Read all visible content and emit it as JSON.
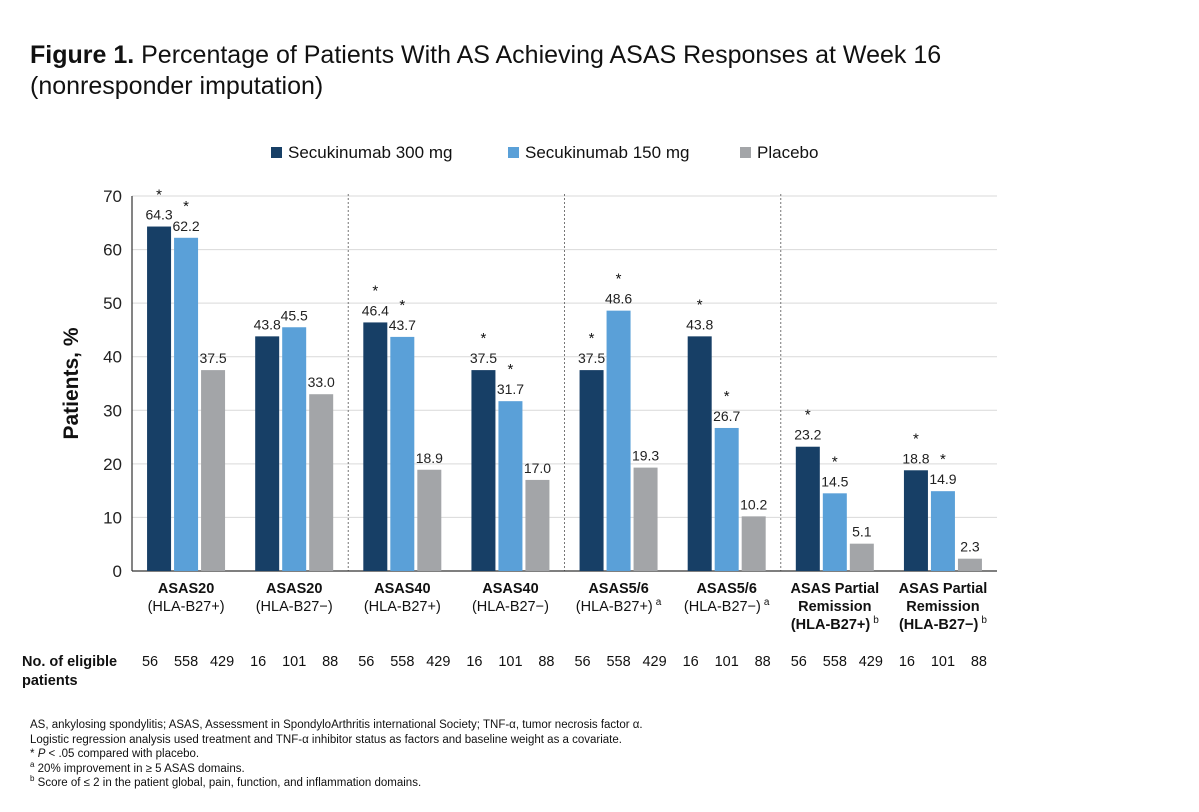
{
  "figure": {
    "label": "Figure 1.",
    "title_line1": " Percentage of Patients With AS Achieving ASAS Responses at Week 16",
    "title_line2": "(nonresponder imputation)"
  },
  "chart_data": {
    "type": "bar",
    "ylabel": "Patients, %",
    "ylim": [
      0,
      70
    ],
    "yticks": [
      0,
      10,
      20,
      30,
      40,
      50,
      60,
      70
    ],
    "grid": true,
    "legend_position": "top",
    "colors": {
      "Secukinumab 300 mg": "#173f66",
      "Secukinumab 150 mg": "#5aa0d8",
      "Placebo": "#a3a5a8"
    },
    "categories": [
      {
        "lines": [
          "ASAS20",
          "(HLA-B27+)"
        ],
        "sup": ""
      },
      {
        "lines": [
          "ASAS20",
          "(HLA-B27−)"
        ],
        "sup": ""
      },
      {
        "lines": [
          "ASAS40",
          "(HLA-B27+)"
        ],
        "sup": ""
      },
      {
        "lines": [
          "ASAS40",
          "(HLA-B27−)"
        ],
        "sup": ""
      },
      {
        "lines": [
          "ASAS5/6",
          "(HLA-B27+)"
        ],
        "sup": "a"
      },
      {
        "lines": [
          "ASAS5/6",
          "(HLA-B27−)"
        ],
        "sup": "a"
      },
      {
        "lines": [
          "ASAS Partial",
          "Remission",
          "(HLA-B27+)"
        ],
        "sup": "b"
      },
      {
        "lines": [
          "ASAS Partial",
          "Remission",
          "(HLA-B27−)"
        ],
        "sup": "b"
      }
    ],
    "series": [
      {
        "name": "Secukinumab 300 mg",
        "values": [
          64.3,
          43.8,
          46.4,
          37.5,
          37.5,
          43.8,
          23.2,
          18.8
        ],
        "labels": [
          "64.3",
          "43.8",
          "46.4",
          "37.5",
          "37.5",
          "43.8",
          "23.2",
          "18.8"
        ],
        "significant": [
          true,
          false,
          true,
          true,
          true,
          true,
          true,
          true
        ]
      },
      {
        "name": "Secukinumab 150 mg",
        "values": [
          62.2,
          45.5,
          43.7,
          31.7,
          48.6,
          26.7,
          14.5,
          14.9
        ],
        "labels": [
          "62.2",
          "45.5",
          "43.7",
          "31.7",
          "48.6",
          "26.7",
          "14.5",
          "14.9"
        ],
        "significant": [
          true,
          false,
          true,
          true,
          true,
          true,
          true,
          true
        ]
      },
      {
        "name": "Placebo",
        "values": [
          37.5,
          33.0,
          18.9,
          17.0,
          19.3,
          10.2,
          5.1,
          2.3
        ],
        "labels": [
          "37.5",
          "33.0",
          "18.9",
          "17.0",
          "19.3",
          "10.2",
          "5.1",
          "2.3"
        ],
        "significant": [
          false,
          false,
          false,
          false,
          false,
          false,
          false,
          false
        ]
      }
    ],
    "significance_marker": "*",
    "eligible": {
      "label_lines": [
        "No. of eligible",
        "patients"
      ],
      "counts": [
        [
          "56",
          "558",
          "429"
        ],
        [
          "16",
          "101",
          "88"
        ],
        [
          "56",
          "558",
          "429"
        ],
        [
          "16",
          "101",
          "88"
        ],
        [
          "56",
          "558",
          "429"
        ],
        [
          "16",
          "101",
          "88"
        ],
        [
          "56",
          "558",
          "429"
        ],
        [
          "16",
          "101",
          "88"
        ]
      ]
    }
  },
  "footnotes": {
    "line1": "AS, ankylosing spondylitis; ASAS, Assessment in SpondyloArthritis international Society; TNF-α, tumor necrosis factor α.",
    "line2": "Logistic regression analysis used treatment and TNF-α inhibitor status as factors and baseline weight as a covariate.",
    "line3_marker": "*",
    "line3_p": "P",
    "line3_text": " < .05 compared with placebo.",
    "line4_marker": "a",
    "line4_text": " 20% improvement in ≥ 5 ASAS domains.",
    "line5_marker": "b",
    "line5_text": " Score of ≤ 2 in the patient global, pain, function, and inflammation domains."
  }
}
